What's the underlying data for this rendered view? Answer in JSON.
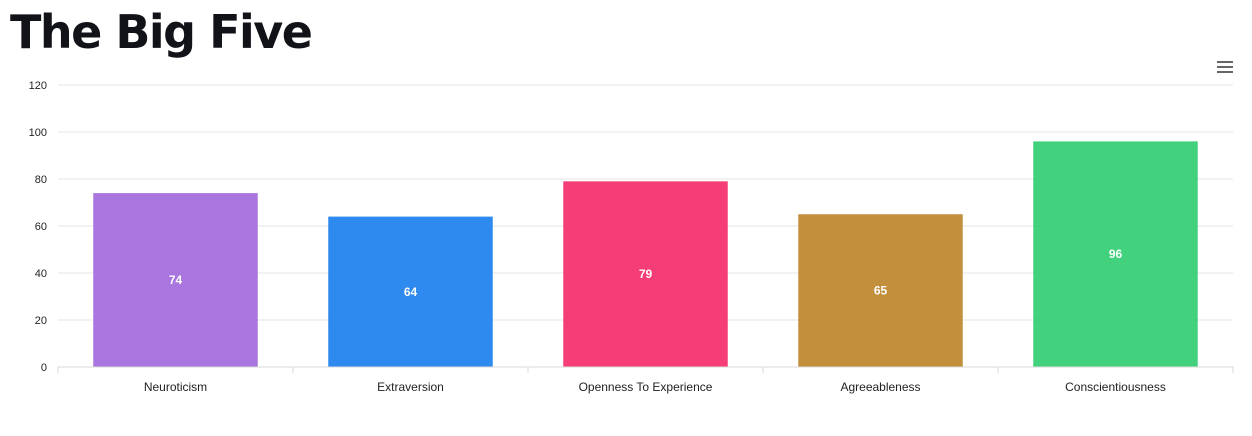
{
  "page": {
    "title": "The Big Five"
  },
  "toolbar": {
    "menu_icon": "hamburger-menu-icon"
  },
  "chart_data": {
    "type": "bar",
    "title": "",
    "xlabel": "",
    "ylabel": "",
    "ylim": [
      0,
      120
    ],
    "yticks": [
      0,
      20,
      40,
      60,
      80,
      100,
      120
    ],
    "grid": true,
    "legend": "none",
    "categories": [
      "Neuroticism",
      "Extraversion",
      "Openness To Experience",
      "Agreeableness",
      "Conscientiousness"
    ],
    "values": [
      74,
      64,
      79,
      65,
      96
    ],
    "colors": [
      "#a36fdc",
      "#2484ee",
      "#f5346f",
      "#bf8933",
      "#38cf76"
    ],
    "gridline_color": "#e6e6e6"
  }
}
